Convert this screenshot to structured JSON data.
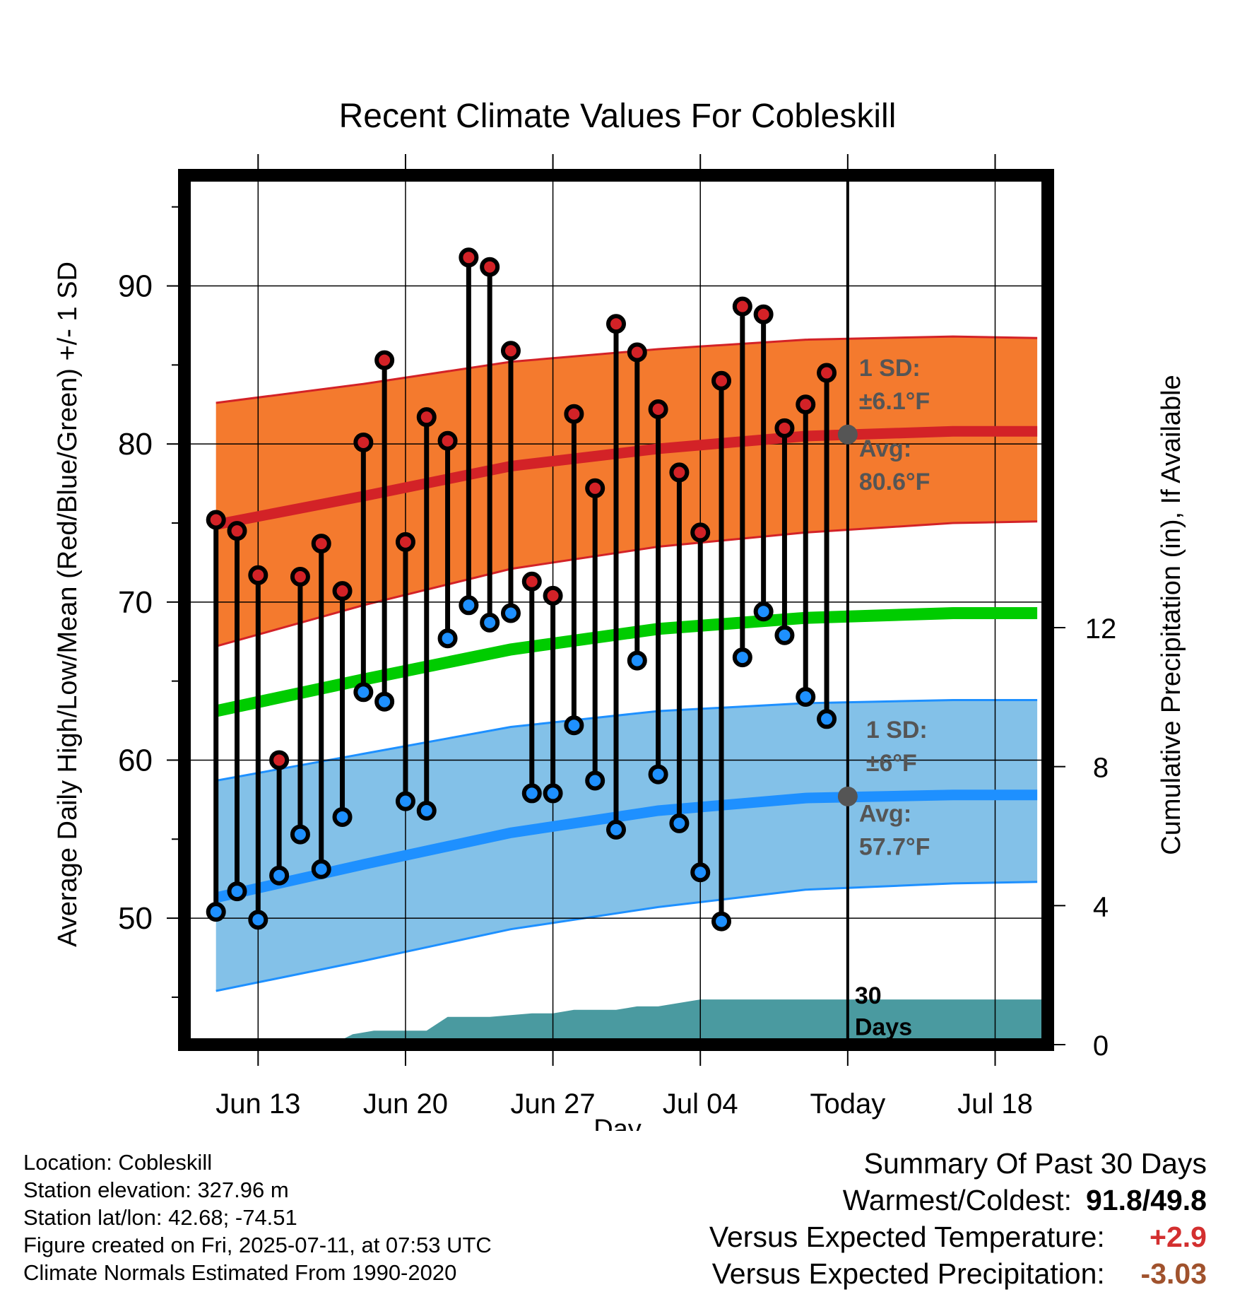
{
  "chart_data": {
    "type": "line",
    "title": "Recent Climate Values For Cobleskill",
    "xlabel": "Day",
    "ylabel": "Average Daily High/Low/Mean (Red/Blue/Green) +/- 1 SD",
    "ylabel_right": "Cumulative Precipitation (in), If Available",
    "ylim": [
      42,
      97
    ],
    "y2lim": [
      0,
      12
    ],
    "xlim": [
      -3.5,
      37.5
    ],
    "x_ticks": [
      {
        "x": 0,
        "label": "Jun 13"
      },
      {
        "x": 7,
        "label": "Jun 20"
      },
      {
        "x": 14,
        "label": "Jun 27"
      },
      {
        "x": 21,
        "label": "Jul 04"
      },
      {
        "x": 28,
        "label": "Today"
      },
      {
        "x": 35,
        "label": "Jul 18"
      }
    ],
    "y_ticks": [
      50,
      60,
      70,
      80,
      90
    ],
    "y2_ticks": [
      0,
      4,
      8,
      12
    ],
    "today_x": 28,
    "days": [
      "2025-06-11",
      "2025-06-12",
      "2025-06-13",
      "2025-06-14",
      "2025-06-15",
      "2025-06-16",
      "2025-06-17",
      "2025-06-18",
      "2025-06-19",
      "2025-06-20",
      "2025-06-21",
      "2025-06-22",
      "2025-06-23",
      "2025-06-24",
      "2025-06-25",
      "2025-06-26",
      "2025-06-27",
      "2025-06-28",
      "2025-06-29",
      "2025-06-30",
      "2025-07-01",
      "2025-07-02",
      "2025-07-03",
      "2025-07-04",
      "2025-07-05",
      "2025-07-06",
      "2025-07-07",
      "2025-07-08",
      "2025-07-09",
      "2025-07-10"
    ],
    "daily_high": [
      75.2,
      74.5,
      71.7,
      60.0,
      71.6,
      73.7,
      70.7,
      80.1,
      85.3,
      73.8,
      81.7,
      80.2,
      91.8,
      91.2,
      85.9,
      71.3,
      70.4,
      81.9,
      77.2,
      87.6,
      85.8,
      82.2,
      78.2,
      74.4,
      84.0,
      88.7,
      88.2,
      81.0,
      82.5,
      84.5
    ],
    "daily_low": [
      50.4,
      51.7,
      49.9,
      52.7,
      55.3,
      53.1,
      56.4,
      64.3,
      63.7,
      57.4,
      56.8,
      67.7,
      69.8,
      68.7,
      69.3,
      57.9,
      57.9,
      62.2,
      58.7,
      55.6,
      66.3,
      59.1,
      56.0,
      52.9,
      49.8,
      66.5,
      69.4,
      67.9,
      64.0,
      62.6
    ],
    "normals": {
      "x": [
        -2,
        5,
        12,
        19,
        26,
        33,
        37
      ],
      "avg_high": [
        74.9,
        76.7,
        78.6,
        79.7,
        80.5,
        80.8,
        80.8
      ],
      "high_sd_upper": [
        82.6,
        83.8,
        85.2,
        86.0,
        86.6,
        86.8,
        86.7
      ],
      "high_sd_lower": [
        67.2,
        69.8,
        72.1,
        73.5,
        74.4,
        75.0,
        75.1
      ],
      "avg_mean": [
        63.1,
        65.1,
        67.0,
        68.3,
        69.0,
        69.3,
        69.3
      ],
      "avg_low": [
        51.3,
        53.4,
        55.4,
        56.8,
        57.6,
        57.8,
        57.8
      ],
      "low_sd_upper": [
        58.7,
        60.4,
        62.1,
        63.1,
        63.6,
        63.8,
        63.8
      ],
      "low_sd_lower": [
        45.4,
        47.3,
        49.3,
        50.7,
        51.8,
        52.2,
        52.3
      ]
    },
    "precip_cumulative": {
      "x": [
        3.5,
        4.5,
        5.5,
        7,
        8,
        9,
        11,
        13,
        14,
        15,
        17,
        18,
        19,
        21,
        37.5
      ],
      "values": [
        0.0,
        0.3,
        0.4,
        0.4,
        0.4,
        0.8,
        0.8,
        0.9,
        0.9,
        1.0,
        1.0,
        1.1,
        1.1,
        1.3,
        1.3
      ]
    },
    "annotations": {
      "high_sd_label": "1 SD:",
      "high_sd_value": "±6.1°F",
      "high_avg_label": "Avg:",
      "high_avg_value": "80.6°F",
      "low_sd_label": "1 SD:",
      "low_sd_value": "±6°F",
      "low_avg_label": "Avg:",
      "low_avg_value": "57.7°F",
      "precip_days_1": "30",
      "precip_days_2": "Days"
    },
    "colors": {
      "high_band": "#f47a2e",
      "high_line": "#d32227",
      "mean_line": "#00cc00",
      "low_band": "#83c1e8",
      "low_line": "#1e90ff",
      "precip": "#4a9aa0",
      "high_dot": "#d32227",
      "low_dot": "#1e90ff",
      "annotation_text": "#555555"
    }
  },
  "info": {
    "location": "Location: Cobleskill",
    "elevation": "Station elevation: 327.96 m",
    "latlon": "Station lat/lon: 42.68; -74.51",
    "created": "Figure created on Fri, 2025-07-11, at 07:53 UTC",
    "normals": "Climate Normals Estimated From 1990-2020"
  },
  "summary": {
    "title": "Summary Of Past 30 Days",
    "warmest_coldest_label": "Warmest/Coldest:",
    "warmest_coldest_value": "91.8/49.8",
    "temp_label": "Versus Expected Temperature:",
    "temp_value": "+2.9",
    "precip_label": "Versus Expected Precipitation:",
    "precip_value": "-3.03"
  }
}
